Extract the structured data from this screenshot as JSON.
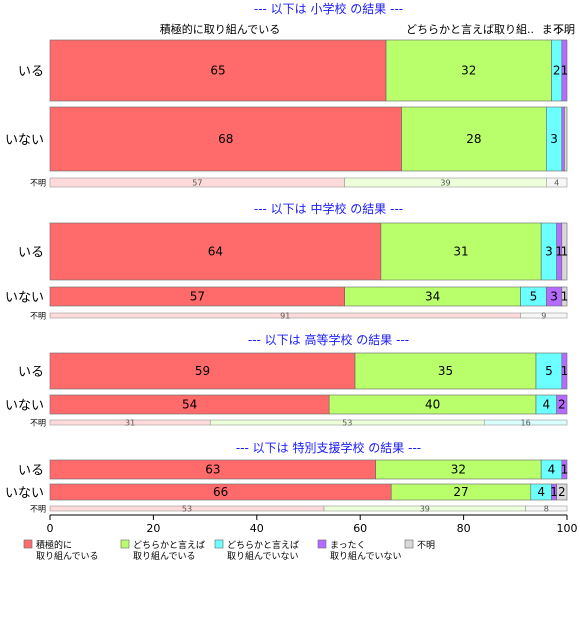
{
  "chart_data": {
    "type": "bar",
    "orientation": "horizontal",
    "stacked": true,
    "xlim": [
      0,
      100
    ],
    "xticks": [
      0,
      20,
      40,
      60,
      80,
      100
    ],
    "colors": [
      "#ff6b6b",
      "#b8ff6b",
      "#6bffff",
      "#b56bff",
      "#d9d9d9"
    ],
    "top_category_labels": [
      "積極的に取り組んでいる",
      "どちらかと言えば取り組..",
      "まっ..",
      "不明"
    ],
    "legend": [
      {
        "line1": "積極的に",
        "line2": "取り組んでいる",
        "color": "#ff6b6b"
      },
      {
        "line1": "どちらかと言えば",
        "line2": "取り組んでいる",
        "color": "#b8ff6b"
      },
      {
        "line1": "どちらかと言えば",
        "line2": "取り組んでいない",
        "color": "#6bffff"
      },
      {
        "line1": "まったく",
        "line2": "取り組んでいない",
        "color": "#b56bff"
      },
      {
        "line1": "不明",
        "line2": "",
        "color": "#d9d9d9"
      }
    ],
    "sections": [
      {
        "title": "--- 以下は 小学校 の結果 ---",
        "rows": [
          {
            "label": "いる",
            "values": [
              65,
              32,
              2,
              1,
              0
            ],
            "labels": [
              "65",
              "32",
              "2",
              "1",
              ""
            ]
          },
          {
            "label": "いない",
            "values": [
              68,
              28,
              3,
              0.5,
              0.5
            ],
            "labels": [
              "68",
              "28",
              "3",
              "",
              ""
            ]
          },
          {
            "label": "不明",
            "small": true,
            "values": [
              57,
              39,
              0,
              0,
              4
            ],
            "labels": [
              "57",
              "39",
              "",
              "",
              "4"
            ]
          }
        ]
      },
      {
        "title": "--- 以下は 中学校 の結果 ---",
        "rows": [
          {
            "label": "いる",
            "values": [
              64,
              31,
              3,
              1,
              1
            ],
            "labels": [
              "64",
              "31",
              "3",
              "1",
              "1"
            ]
          },
          {
            "label": "いない",
            "values": [
              57,
              34,
              5,
              3,
              1
            ],
            "labels": [
              "57",
              "34",
              "5",
              "3",
              "1"
            ]
          },
          {
            "label": "不明",
            "small": true,
            "values": [
              91,
              0,
              0,
              0,
              9
            ],
            "labels": [
              "91",
              "",
              "",
              "",
              "9"
            ]
          }
        ]
      },
      {
        "title": "--- 以下は 高等学校 の結果 ---",
        "rows": [
          {
            "label": "いる",
            "values": [
              59,
              35,
              5,
              1,
              0
            ],
            "labels": [
              "59",
              "35",
              "5",
              "1",
              ""
            ]
          },
          {
            "label": "いない",
            "values": [
              54,
              40,
              4,
              2,
              0
            ],
            "labels": [
              "54",
              "40",
              "4",
              "2",
              ""
            ]
          },
          {
            "label": "不明",
            "small": true,
            "values": [
              31,
              53,
              16,
              0,
              0
            ],
            "labels": [
              "31",
              "53",
              "16",
              "",
              ""
            ]
          }
        ]
      },
      {
        "title": "--- 以下は 特別支援学校 の結果 ---",
        "rows": [
          {
            "label": "いる",
            "values": [
              63,
              32,
              4,
              1,
              0
            ],
            "labels": [
              "63",
              "32",
              "4",
              "1",
              ""
            ]
          },
          {
            "label": "いない",
            "values": [
              66,
              27,
              4,
              1,
              2
            ],
            "labels": [
              "66",
              "27",
              "4",
              "1",
              "2"
            ]
          },
          {
            "label": "不明",
            "small": true,
            "values": [
              53,
              39,
              0,
              0,
              8
            ],
            "labels": [
              "53",
              "39",
              "",
              "",
              "8"
            ]
          }
        ]
      }
    ]
  }
}
